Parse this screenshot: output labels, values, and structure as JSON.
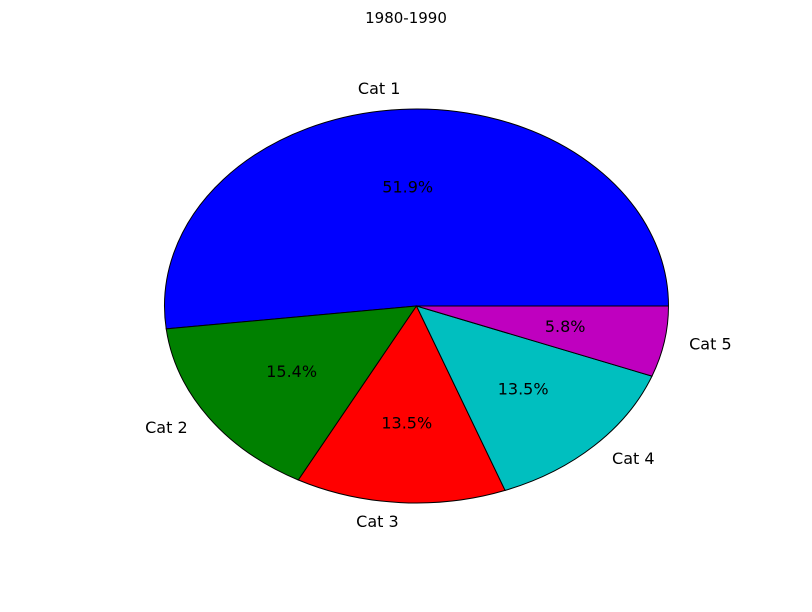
{
  "chart_data": {
    "type": "pie",
    "title": "1980-1990",
    "categories": [
      "Cat 1",
      "Cat 2",
      "Cat 3",
      "Cat 4",
      "Cat 5"
    ],
    "values": [
      51.9,
      15.4,
      13.5,
      13.5,
      5.8
    ],
    "value_labels": [
      "51.9%",
      "15.4%",
      "13.5%",
      "13.5%",
      "5.8%"
    ],
    "colors": [
      "#0000ff",
      "#008000",
      "#ff0000",
      "#00bfbf",
      "#bf00bf"
    ],
    "start_angle_deg": 0,
    "direction": "counterclockwise",
    "edge_color": "#000000"
  }
}
